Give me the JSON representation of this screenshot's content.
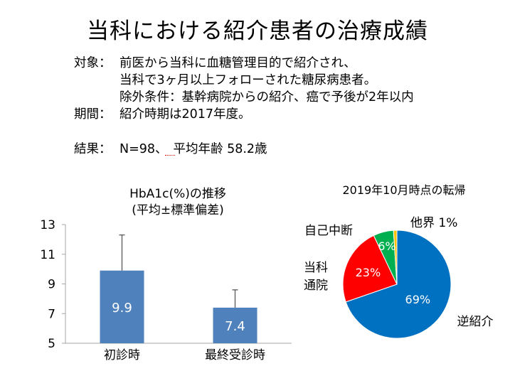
{
  "title": "当科における紹介患者の治療成績",
  "info": {
    "subject_label": "対象：",
    "subject_line1": "前医から当科に血糖管理目的で紹介され、",
    "subject_line2": "当科で3ヶ月以上フォローされた糖尿病患者。",
    "subject_line3": "除外条件：基幹病院からの紹介、癌で予後が2年以内",
    "period_label": "期間：",
    "period_text": "紹介時期は2017年度。",
    "result_label": "結果：",
    "result_n": "N=98",
    "result_sep": "、",
    "result_text": "平均年齢 58.2歳"
  },
  "chart_data": [
    {
      "type": "bar",
      "title": "HbA1c(%)の推移",
      "subtitle": "(平均±標準偏差)",
      "categories": [
        "初診時",
        "最終受診時"
      ],
      "values": [
        9.9,
        7.4
      ],
      "value_labels": [
        "9.9",
        "7.4"
      ],
      "error_plus": [
        2.4,
        1.2
      ],
      "ylim": [
        5,
        13
      ],
      "yticks": [
        5,
        7,
        9,
        11,
        13
      ],
      "ytick_labels": [
        "5",
        "7",
        "9",
        "11",
        "13"
      ],
      "grid": false,
      "bar_color": "#4f81bd",
      "error_color": "#595959"
    },
    {
      "type": "pie",
      "title": "2019年10月時点の転帰",
      "slices": [
        {
          "name": "逆紹介",
          "value": 69,
          "label": "69%",
          "color": "#0070c0",
          "label_color": "#ffffff"
        },
        {
          "name": "当科通院",
          "name_lines": [
            "当科",
            "通院"
          ],
          "value": 23,
          "label": "23%",
          "color": "#ff0000",
          "label_color": "#ffffff"
        },
        {
          "name": "自己中断",
          "value": 6,
          "label": "6%",
          "color": "#00b050",
          "label_color": "#ffffff"
        },
        {
          "name": "他界",
          "value": 1,
          "label": "1%",
          "color": "#ffc000",
          "label_color": "#000000"
        }
      ]
    }
  ]
}
